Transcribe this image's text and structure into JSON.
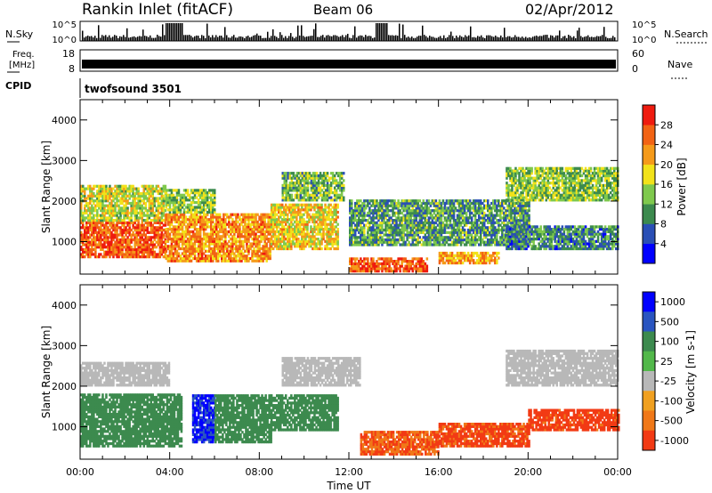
{
  "header": {
    "station": "Rankin Inlet (fitACF)",
    "beam": "Beam 06",
    "date": "02/Apr/2012"
  },
  "noise_panel": {
    "left_label": "N.Sky",
    "left_ticks": [
      "10^5",
      "10^0"
    ],
    "right_label": "N.Search",
    "right_ticks": [
      "10^5",
      "10^0"
    ]
  },
  "freq_panel": {
    "left_label_1": "Freq.",
    "left_label_2": "[MHz]",
    "left_ticks": [
      "18",
      "8"
    ],
    "right_label": "Nave",
    "right_ticks": [
      "60",
      "0"
    ]
  },
  "cpid_panel": {
    "label": "CPID",
    "program": "twofsound 3501"
  },
  "colors": {
    "power_scale": [
      "#0000ff",
      "#2a4fb5",
      "#3c8a4e",
      "#7fc94d",
      "#f2e21a",
      "#f59a1a",
      "#f26314",
      "#ef1b0f"
    ],
    "velocity_scale": [
      "#0000ff",
      "#2a55c0",
      "#3c8a4e",
      "#52b84a",
      "#b8b8b8",
      "#f0a020",
      "#f07818",
      "#f23a14"
    ]
  },
  "chart_data": [
    {
      "type": "heatmap",
      "panel": "power",
      "ylabel": "Slant Range [km]",
      "y_ticks": [
        "1000",
        "2000",
        "3000",
        "4000"
      ],
      "ylim": [
        200,
        4500
      ],
      "colorbar_label": "Power [dB]",
      "colorbar_ticks": [
        "4",
        "8",
        "12",
        "16",
        "20",
        "24",
        "28"
      ],
      "colorbar_range": [
        0,
        32
      ],
      "regions": [
        {
          "t0": 0.0,
          "t1": 3.8,
          "r0": 600,
          "r1": 1500,
          "value": 26
        },
        {
          "t0": 0.0,
          "t1": 3.8,
          "r0": 1500,
          "r1": 2400,
          "value": 17
        },
        {
          "t0": 3.8,
          "t1": 8.5,
          "r0": 500,
          "r1": 1700,
          "value": 23
        },
        {
          "t0": 3.8,
          "t1": 6.0,
          "r0": 1700,
          "r1": 2300,
          "value": 14
        },
        {
          "t0": 8.5,
          "t1": 11.5,
          "r0": 800,
          "r1": 1900,
          "value": 19
        },
        {
          "t0": 9.0,
          "t1": 11.8,
          "r0": 2000,
          "r1": 2700,
          "value": 13
        },
        {
          "t0": 12.0,
          "t1": 15.5,
          "r0": 250,
          "r1": 600,
          "value": 27
        },
        {
          "t0": 12.0,
          "t1": 20.0,
          "r0": 900,
          "r1": 2000,
          "value": 11
        },
        {
          "t0": 16.0,
          "t1": 18.7,
          "r0": 450,
          "r1": 750,
          "value": 22
        },
        {
          "t0": 19.0,
          "t1": 24.0,
          "r0": 2000,
          "r1": 2800,
          "value": 14
        },
        {
          "t0": 19.0,
          "t1": 24.0,
          "r0": 800,
          "r1": 1400,
          "value": 9
        }
      ]
    },
    {
      "type": "heatmap",
      "panel": "velocity",
      "ylabel": "Slant Range [km]",
      "y_ticks": [
        "1000",
        "2000",
        "3000",
        "4000"
      ],
      "ylim": [
        200,
        4500
      ],
      "colorbar_label": "Velocity [m s-1]",
      "colorbar_ticks": [
        "1000",
        "500",
        "100",
        "25",
        "-25",
        "-100",
        "-500",
        "-1000"
      ],
      "regions": [
        {
          "t0": 0.0,
          "t1": 4.0,
          "r0": 2000,
          "r1": 2600,
          "value": 0
        },
        {
          "t0": 0.0,
          "t1": 4.5,
          "r0": 500,
          "r1": 1800,
          "value": 150
        },
        {
          "t0": 5.0,
          "t1": 6.0,
          "r0": 600,
          "r1": 1800,
          "value": 800
        },
        {
          "t0": 6.0,
          "t1": 8.5,
          "r0": 600,
          "r1": 1800,
          "value": 150
        },
        {
          "t0": 8.5,
          "t1": 11.5,
          "r0": 900,
          "r1": 1800,
          "value": 150
        },
        {
          "t0": 9.0,
          "t1": 12.5,
          "r0": 2000,
          "r1": 2700,
          "value": 0
        },
        {
          "t0": 12.5,
          "t1": 16.0,
          "r0": 300,
          "r1": 900,
          "value": -300
        },
        {
          "t0": 16.0,
          "t1": 20.0,
          "r0": 500,
          "r1": 1100,
          "value": -350
        },
        {
          "t0": 20.0,
          "t1": 24.0,
          "r0": 900,
          "r1": 1400,
          "value": -400
        },
        {
          "t0": 19.0,
          "t1": 24.0,
          "r0": 2000,
          "r1": 2900,
          "value": 0
        }
      ]
    }
  ],
  "x_axis": {
    "ticks": [
      "00:00",
      "04:00",
      "08:00",
      "12:00",
      "16:00",
      "20:00",
      "00:00"
    ],
    "label": "Time UT"
  }
}
